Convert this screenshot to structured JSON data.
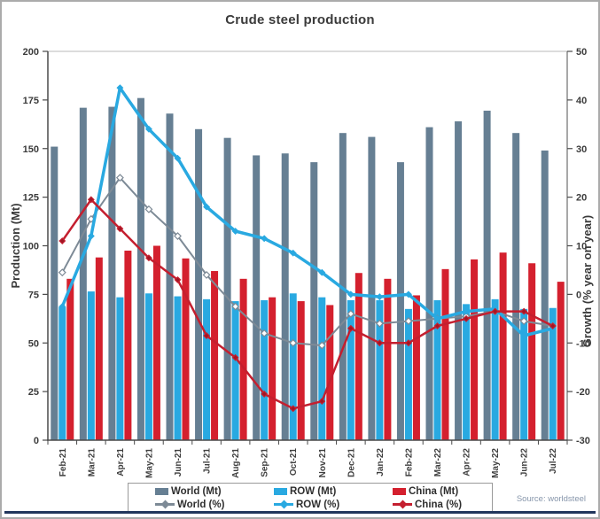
{
  "title": "Crude steel production",
  "source": "Source: worldsteel",
  "legend": [
    {
      "label": "World (Mt)",
      "color": "#667f93",
      "type": "bar"
    },
    {
      "label": "ROW (Mt)",
      "color": "#29a9e1",
      "type": "bar"
    },
    {
      "label": "China (Mt)",
      "color": "#d4202e",
      "type": "bar"
    },
    {
      "label": "World (%)",
      "color": "#7d8a96",
      "type": "line"
    },
    {
      "label": "ROW (%)",
      "color": "#29a9e1",
      "type": "line"
    },
    {
      "label": "China (%)",
      "color": "#c41f2f",
      "type": "line"
    }
  ],
  "chart_data": {
    "type": "combo bar+line",
    "title": "Crude steel production",
    "categories": [
      "Feb-21",
      "Mar-21",
      "Apr-21",
      "May-21",
      "Jun-21",
      "Jul-21",
      "Aug-21",
      "Sep-21",
      "Oct-21",
      "Nov-21",
      "Dec-21",
      "Jan-22",
      "Feb-22",
      "Mar-22",
      "Apr-22",
      "May-22",
      "Jun-22",
      "Jul-22"
    ],
    "bar_series": [
      {
        "name": "World (Mt)",
        "color": "#667f93",
        "values": [
          151,
          171,
          171.5,
          176,
          168,
          160,
          155.5,
          146.5,
          147.5,
          143,
          158,
          156,
          143,
          161,
          164,
          169.5,
          158,
          149
        ]
      },
      {
        "name": "ROW (Mt)",
        "color": "#29a9e1",
        "values": [
          68.5,
          76.5,
          73.5,
          75.5,
          74,
          72.5,
          71.5,
          72,
          75.5,
          73.5,
          72,
          72,
          67.5,
          72,
          70,
          72.5,
          67.5,
          68
        ]
      },
      {
        "name": "China (Mt)",
        "color": "#d4202e",
        "values": [
          83,
          94,
          97.5,
          100,
          93.5,
          87,
          83,
          73.5,
          71.5,
          69.5,
          86,
          83,
          74.5,
          88,
          93,
          96.5,
          91,
          81.5
        ]
      }
    ],
    "line_series": [
      {
        "name": "World (%)",
        "color": "#7d8a96",
        "marker": "open-diamond",
        "values": [
          4.5,
          15.5,
          24,
          17.5,
          12,
          4,
          -2.5,
          -8,
          -10,
          -10.5,
          -4,
          -6,
          -5.5,
          -5,
          -4.5,
          -3.5,
          -5.5,
          -6.5
        ]
      },
      {
        "name": "ROW (%)",
        "color": "#29a9e1",
        "marker": "diamond",
        "values": [
          -2.5,
          12,
          42.5,
          34,
          28,
          18,
          13,
          11.5,
          8.5,
          4.5,
          0,
          -0.5,
          0,
          -5,
          -3.5,
          -3,
          -8.5,
          -7
        ]
      },
      {
        "name": "China (%)",
        "color": "#c41f2f",
        "marker": "diamond",
        "values": [
          11,
          19.5,
          13.5,
          7.5,
          3,
          -8.5,
          -13,
          -20.5,
          -23.5,
          -22,
          -7,
          -10,
          -10,
          -6.5,
          -5,
          -3.5,
          -3.5,
          -6.5
        ]
      }
    ],
    "left_axis": {
      "label": "Production (Mt)",
      "min": 0,
      "max": 200,
      "ticks": [
        0,
        25,
        50,
        75,
        100,
        125,
        150,
        175,
        200
      ]
    },
    "right_axis": {
      "label": "Growth (% year on year)",
      "min": -30,
      "max": 50,
      "ticks": [
        -30,
        -20,
        -10,
        0,
        10,
        20,
        30,
        40,
        50
      ]
    },
    "grid": "off",
    "legend_position": "bottom"
  }
}
